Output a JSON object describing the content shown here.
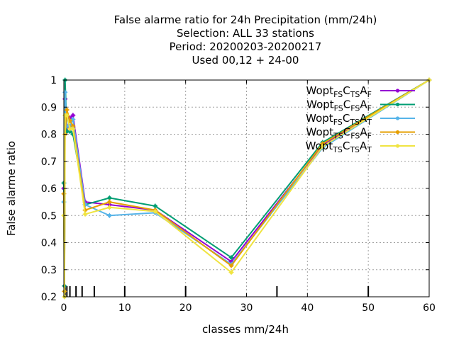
{
  "chart_data": {
    "type": "line",
    "title_lines": [
      "False alarme ratio  for 24h Precipitation (mm/24h)",
      "Selection: ALL     33 stations",
      "Period: 20200203-20200217",
      "Used  00,12  + 24-00"
    ],
    "xlabel": "classes mm/24h",
    "ylabel": "False alarme ratio",
    "xlim": [
      0,
      60
    ],
    "ylim": [
      0.2,
      1.0
    ],
    "xticks": [
      0,
      10,
      20,
      30,
      40,
      50,
      60
    ],
    "yticks": [
      0.2,
      0.3,
      0.4,
      0.5,
      0.6,
      0.7,
      0.8,
      0.9,
      1.0
    ],
    "x_tick_labels": [
      "0",
      "10",
      "20",
      "30",
      "40",
      "50",
      "60"
    ],
    "y_tick_labels": [
      "0.2",
      "0.3",
      "0.4",
      "0.5",
      "0.6",
      "0.7",
      "0.8",
      "0.9",
      "1"
    ],
    "class_marks": [
      0.1,
      0.2,
      0.5,
      1,
      2,
      3,
      5,
      10,
      20,
      35,
      50
    ],
    "grid": true,
    "legend_position": "top-right",
    "series": [
      {
        "name": "Wopt FS C TS A F",
        "legend": {
          "base": "Wopt",
          "parts": [
            [
              "FS",
              "C"
            ],
            [
              "TS",
              "A"
            ],
            [
              "F",
              ""
            ]
          ]
        },
        "color": "#9400d3",
        "x": [
          0,
          0.1,
          0.2,
          0.5,
          1,
          1.5,
          3.5,
          7.5,
          15,
          27.5,
          42.5,
          60
        ],
        "y": [
          0.6,
          0.24,
          0.93,
          0.81,
          0.86,
          0.87,
          0.55,
          0.54,
          0.52,
          0.33,
          0.76,
          1.0
        ]
      },
      {
        "name": "Wopt FS C FS A F",
        "legend": {
          "base": "Wopt",
          "parts": [
            [
              "FS",
              "C"
            ],
            [
              "FS",
              "A"
            ],
            [
              "F",
              ""
            ]
          ]
        },
        "color": "#009e73",
        "x": [
          0,
          0.1,
          0.2,
          0.5,
          1,
          1.5,
          3.5,
          7.5,
          15,
          27.5,
          42.5,
          60
        ],
        "y": [
          0.62,
          0.24,
          1.0,
          0.81,
          0.81,
          0.8,
          0.54,
          0.565,
          0.535,
          0.345,
          0.77,
          1.0
        ]
      },
      {
        "name": "Wopt FS C TS A T",
        "legend": {
          "base": "Wopt",
          "parts": [
            [
              "FS",
              "C"
            ],
            [
              "TS",
              "A"
            ],
            [
              "T",
              ""
            ]
          ]
        },
        "color": "#56b4e9",
        "x": [
          0,
          0.1,
          0.2,
          0.5,
          1,
          1.5,
          3.5,
          7.5,
          15,
          27.5,
          42.5,
          60
        ],
        "y": [
          0.55,
          0.22,
          0.955,
          0.83,
          0.83,
          0.855,
          0.54,
          0.5,
          0.51,
          0.32,
          0.75,
          1.0
        ]
      },
      {
        "name": "Wopt TS C FS A F",
        "legend": {
          "base": "Wopt",
          "parts": [
            [
              "TS",
              "C"
            ],
            [
              "FS",
              "A"
            ],
            [
              "F",
              ""
            ]
          ]
        },
        "color": "#e69f00",
        "x": [
          0,
          0.1,
          0.2,
          0.5,
          1,
          1.5,
          3.5,
          7.5,
          15,
          27.5,
          42.5,
          60
        ],
        "y": [
          0.58,
          0.22,
          0.8,
          0.89,
          0.85,
          0.83,
          0.52,
          0.55,
          0.52,
          0.315,
          0.765,
          1.0
        ]
      },
      {
        "name": "Wopt TS C TS A T",
        "legend": {
          "base": "Wopt",
          "parts": [
            [
              "TS",
              "C"
            ],
            [
              "TS",
              "A"
            ],
            [
              "T",
              ""
            ]
          ]
        },
        "color": "#f0e442",
        "x": [
          0,
          0.1,
          0.2,
          0.5,
          1,
          1.5,
          3.5,
          7.5,
          15,
          27.5,
          42.5,
          60
        ],
        "y": [
          0.5,
          0.2,
          0.87,
          0.87,
          0.82,
          0.82,
          0.505,
          0.53,
          0.515,
          0.29,
          0.755,
          1.0
        ]
      }
    ]
  }
}
